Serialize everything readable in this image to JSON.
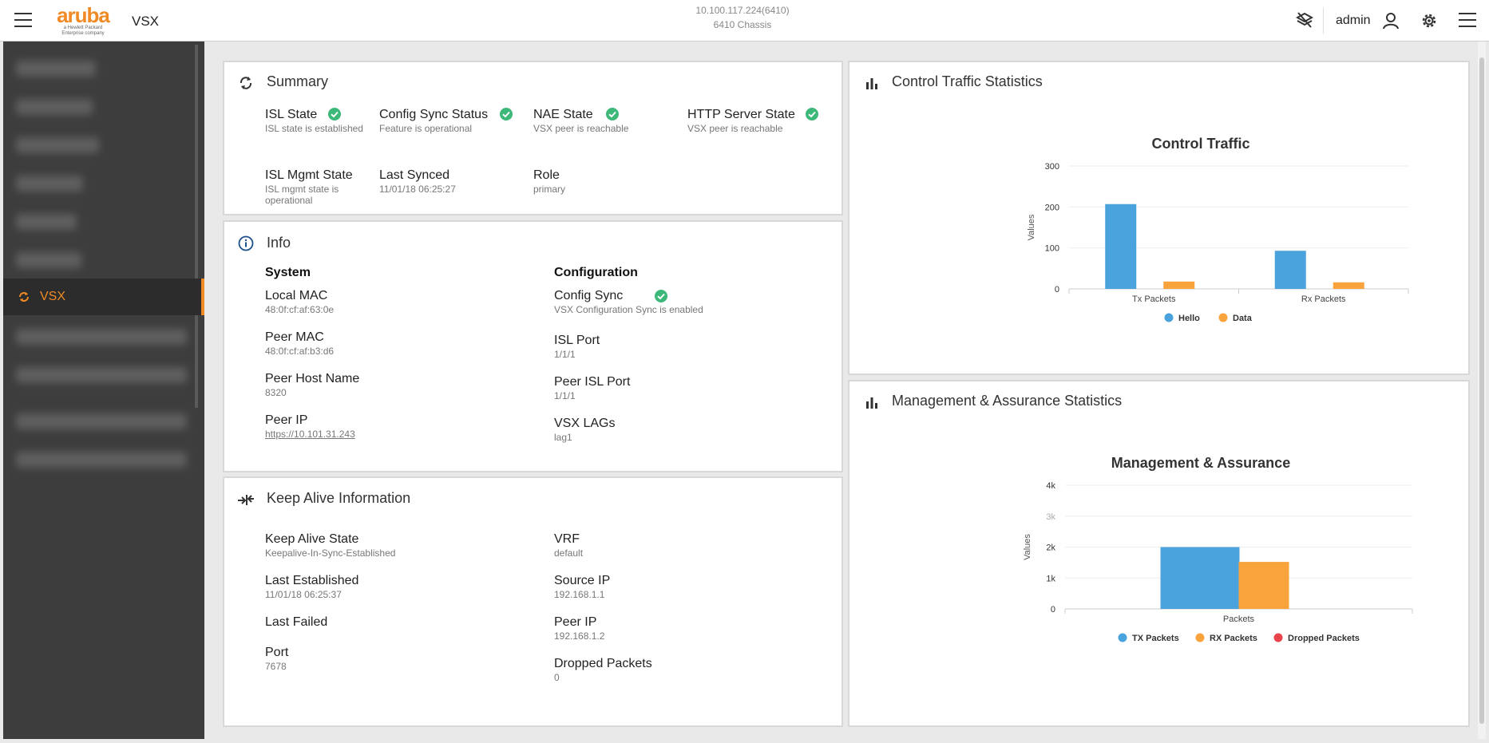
{
  "header": {
    "app_name": "VSX",
    "logo_text": "aruba",
    "logo_sub1": "a Hewlett Packard",
    "logo_sub2": "Enterprise company",
    "host_ip": "10.100.117.224(6410)",
    "host_model": "6410 Chassis",
    "user": "admin"
  },
  "sidebar": {
    "active_item": "VSX"
  },
  "summary": {
    "title": "Summary",
    "items": [
      {
        "label": "ISL State",
        "sub": "ISL state is established"
      },
      {
        "label": "Config Sync Status",
        "sub": "Feature is operational"
      },
      {
        "label": "NAE State",
        "sub": "VSX peer is reachable"
      },
      {
        "label": "HTTP Server State",
        "sub": "VSX peer is reachable"
      },
      {
        "label": "ISL Mgmt State",
        "sub": "ISL mgmt state is operational"
      },
      {
        "label": "Last Synced",
        "sub": "11/01/18 06:25:27"
      },
      {
        "label": "Role",
        "sub": "primary"
      }
    ]
  },
  "info": {
    "title": "Info",
    "system_heading": "System",
    "config_heading": "Configuration",
    "system": [
      {
        "label": "Local MAC",
        "sub": "48:0f:cf:af:63:0e"
      },
      {
        "label": "Peer MAC",
        "sub": "48:0f:cf:af:b3:d6"
      },
      {
        "label": "Peer Host Name",
        "sub": "8320"
      },
      {
        "label": "Peer IP",
        "sub": "https://10.101.31.243"
      }
    ],
    "config": [
      {
        "label": "Config Sync",
        "sub": "VSX Configuration Sync is enabled"
      },
      {
        "label": "ISL Port",
        "sub": "1/1/1"
      },
      {
        "label": "Peer ISL Port",
        "sub": "1/1/1"
      },
      {
        "label": "VSX LAGs",
        "sub": "lag1"
      }
    ]
  },
  "keepalive": {
    "title": "Keep Alive Information",
    "left": [
      {
        "label": "Keep Alive State",
        "sub": "Keepalive-In-Sync-Established"
      },
      {
        "label": "Last Established",
        "sub": "11/01/18 06:25:37"
      },
      {
        "label": "Last Failed",
        "sub": ""
      },
      {
        "label": "Port",
        "sub": "7678"
      }
    ],
    "right": [
      {
        "label": "VRF",
        "sub": "default"
      },
      {
        "label": "Source IP",
        "sub": "192.168.1.1"
      },
      {
        "label": "Peer IP",
        "sub": "192.168.1.2"
      },
      {
        "label": "Dropped Packets",
        "sub": "0"
      }
    ]
  },
  "panels": {
    "control_title": "Control Traffic Statistics",
    "mgmt_title": "Management & Assurance Statistics"
  },
  "colors": {
    "accent": "#f08a24",
    "ok": "#3cb878",
    "blue": "#4ba3dd",
    "orange": "#f8a33c",
    "red": "#e9444b"
  },
  "chart_data": [
    {
      "type": "bar",
      "title": "Control Traffic",
      "ylabel": "Values",
      "xlabel": "",
      "categories": [
        "Tx Packets",
        "Rx Packets"
      ],
      "ylim": [
        0,
        300
      ],
      "yticks": [
        "0",
        "100",
        "200",
        "300"
      ],
      "series": [
        {
          "name": "Hello",
          "values": [
            207,
            93
          ],
          "color": "#4ba3dd"
        },
        {
          "name": "Data",
          "values": [
            18,
            16
          ],
          "color": "#f8a33c"
        }
      ],
      "legend": "bottom",
      "grid": true
    },
    {
      "type": "bar",
      "title": "Management & Assurance",
      "ylabel": "Values",
      "xlabel": "",
      "categories": [
        "Packets"
      ],
      "ylim": [
        0,
        4000
      ],
      "yticks": [
        "0",
        "1k",
        "2k",
        "3k",
        "4k"
      ],
      "series": [
        {
          "name": "TX Packets",
          "values": [
            2000
          ],
          "color": "#4ba3dd"
        },
        {
          "name": "RX Packets",
          "values": [
            1520
          ],
          "color": "#f8a33c"
        },
        {
          "name": "Dropped Packets",
          "values": [
            0
          ],
          "color": "#e9444b"
        }
      ],
      "legend": "bottom",
      "grid": true
    }
  ]
}
